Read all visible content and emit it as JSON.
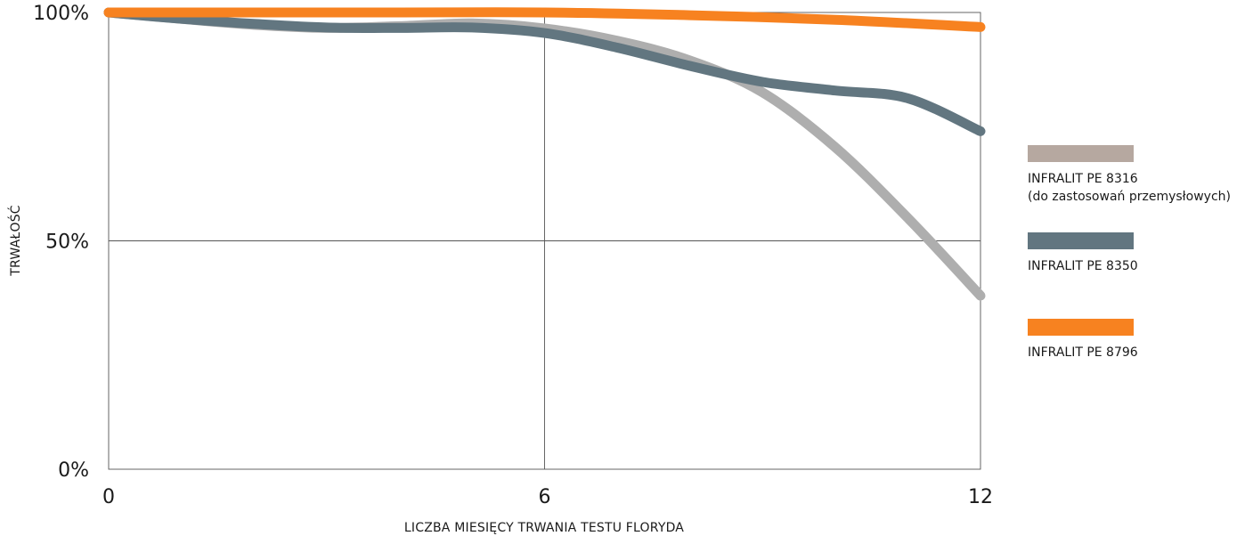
{
  "chart_data": {
    "type": "line",
    "xlabel": "LICZBA MIESIĘCY TRWANIA TESTU FLORYDA",
    "ylabel": "TRWAŁOŚĆ",
    "xlim": [
      0,
      12
    ],
    "ylim": [
      0,
      100
    ],
    "x_ticks": [
      {
        "value": 0,
        "label": "0"
      },
      {
        "value": 6,
        "label": "6"
      },
      {
        "value": 12,
        "label": "12"
      }
    ],
    "y_ticks": [
      {
        "value": 0,
        "label": "0%"
      },
      {
        "value": 50,
        "label": "50%"
      },
      {
        "value": 100,
        "label": "100%"
      }
    ],
    "grid": true,
    "legend_position": "right",
    "series": [
      {
        "name": "INFRALIT PE 8316",
        "name_line2": "(do zastosowań przemysłowych)",
        "line_color": "#aeaeae",
        "swatch_color": "#b6a8a0",
        "x": [
          0,
          1,
          2,
          3,
          4,
          5,
          6,
          7,
          8,
          9,
          10,
          11,
          12
        ],
        "y": [
          100,
          98.6,
          97.3,
          96.6,
          97,
          97.6,
          96.5,
          93.8,
          89.5,
          82.5,
          70.5,
          55,
          38
        ]
      },
      {
        "name": "INFRALIT PE 8350",
        "line_color": "#627680",
        "swatch_color": "#627680",
        "x": [
          0,
          1,
          2,
          3,
          4,
          5,
          6,
          7,
          8,
          9,
          10,
          11,
          12
        ],
        "y": [
          100,
          98.6,
          97.5,
          96.7,
          96.6,
          96.7,
          95.5,
          92.3,
          88.3,
          84.8,
          82.9,
          81.2,
          74
        ]
      },
      {
        "name": "INFRALIT PE 8796",
        "line_color": "#f78220",
        "swatch_color": "#f78220",
        "x": [
          0,
          2,
          4,
          6,
          8,
          10,
          12
        ],
        "y": [
          100,
          100,
          100,
          100,
          99.4,
          98.4,
          96.8
        ]
      }
    ]
  }
}
